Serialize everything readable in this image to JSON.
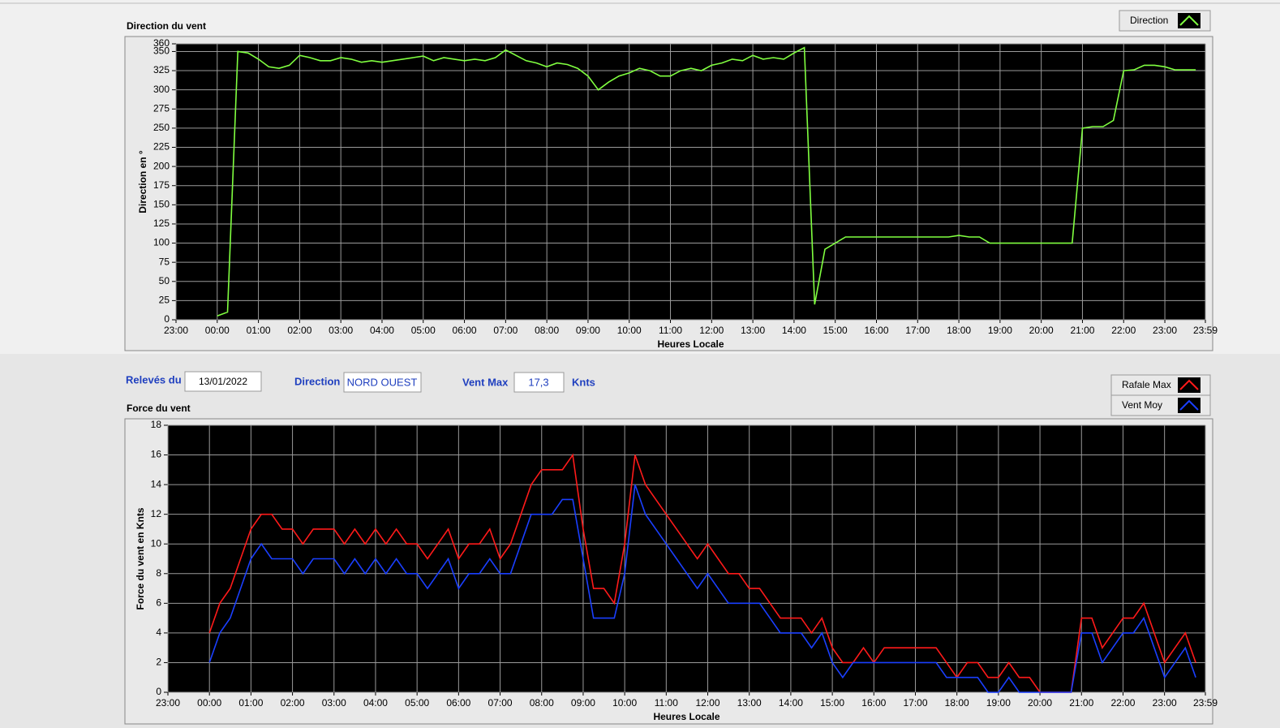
{
  "chart_data": [
    {
      "type": "line",
      "title": "Direction du vent",
      "y_label": "Direction en °",
      "x_label": "Heures Locale",
      "x": [
        "00:00",
        "00:15",
        "00:30",
        "00:45",
        "01:00",
        "01:15",
        "01:30",
        "01:45",
        "02:00",
        "02:15",
        "02:30",
        "02:45",
        "03:00",
        "03:15",
        "03:30",
        "03:45",
        "04:00",
        "04:15",
        "04:30",
        "04:45",
        "05:00",
        "05:15",
        "05:30",
        "05:45",
        "06:00",
        "06:15",
        "06:30",
        "06:45",
        "07:00",
        "07:15",
        "07:30",
        "07:45",
        "08:00",
        "08:15",
        "08:30",
        "08:45",
        "09:00",
        "09:15",
        "09:30",
        "09:45",
        "10:00",
        "10:15",
        "10:30",
        "10:45",
        "11:00",
        "11:15",
        "11:30",
        "11:45",
        "12:00",
        "12:15",
        "12:30",
        "12:45",
        "13:00",
        "13:15",
        "13:30",
        "13:45",
        "14:00",
        "14:15",
        "14:30",
        "14:45",
        "15:00",
        "15:15",
        "15:30",
        "15:45",
        "16:00",
        "16:15",
        "16:30",
        "16:45",
        "17:00",
        "17:15",
        "17:30",
        "17:45",
        "18:00",
        "18:15",
        "18:30",
        "18:45",
        "19:00",
        "19:15",
        "19:30",
        "19:45",
        "20:00",
        "20:15",
        "20:30",
        "20:45",
        "21:00",
        "21:15",
        "21:30",
        "21:45",
        "22:00",
        "22:15",
        "22:30",
        "22:45",
        "23:00",
        "23:15",
        "23:30",
        "23:45"
      ],
      "xticks": [
        "23:00",
        "00:00",
        "01:00",
        "02:00",
        "03:00",
        "04:00",
        "05:00",
        "06:00",
        "07:00",
        "08:00",
        "09:00",
        "10:00",
        "11:00",
        "12:00",
        "13:00",
        "14:00",
        "15:00",
        "16:00",
        "17:00",
        "18:00",
        "19:00",
        "20:00",
        "21:00",
        "22:00",
        "23:00",
        "23:59"
      ],
      "ylim": [
        0,
        360
      ],
      "yticks": [
        0,
        25,
        50,
        75,
        100,
        125,
        150,
        175,
        200,
        225,
        250,
        275,
        300,
        325,
        350,
        360
      ],
      "grid": true,
      "series": [
        {
          "name": "Direction",
          "color": "#80ff40",
          "values": [
            5,
            10,
            350,
            348,
            340,
            330,
            328,
            332,
            345,
            342,
            338,
            338,
            342,
            340,
            336,
            338,
            336,
            338,
            340,
            342,
            344,
            338,
            342,
            340,
            338,
            340,
            338,
            342,
            352,
            345,
            338,
            335,
            330,
            335,
            333,
            328,
            318,
            300,
            310,
            318,
            322,
            328,
            325,
            318,
            318,
            325,
            328,
            325,
            332,
            335,
            340,
            338,
            345,
            340,
            342,
            340,
            348,
            355,
            20,
            92,
            100,
            108,
            108,
            108,
            108,
            108,
            108,
            108,
            108,
            108,
            108,
            108,
            110,
            108,
            108,
            100,
            100,
            100,
            100,
            100,
            100,
            100,
            100,
            100,
            250,
            252,
            252,
            260,
            325,
            326,
            332,
            332,
            330,
            326,
            326,
            326
          ]
        }
      ]
    },
    {
      "type": "line",
      "title": "Force du vent",
      "y_label": "Force du vent en Knts",
      "x_label": "Heures Locale",
      "x": [
        "00:00",
        "00:15",
        "00:30",
        "00:45",
        "01:00",
        "01:15",
        "01:30",
        "01:45",
        "02:00",
        "02:15",
        "02:30",
        "02:45",
        "03:00",
        "03:15",
        "03:30",
        "03:45",
        "04:00",
        "04:15",
        "04:30",
        "04:45",
        "05:00",
        "05:15",
        "05:30",
        "05:45",
        "06:00",
        "06:15",
        "06:30",
        "06:45",
        "07:00",
        "07:15",
        "07:30",
        "07:45",
        "08:00",
        "08:15",
        "08:30",
        "08:45",
        "09:00",
        "09:15",
        "09:30",
        "09:45",
        "10:00",
        "10:15",
        "10:30",
        "10:45",
        "11:00",
        "11:15",
        "11:30",
        "11:45",
        "12:00",
        "12:15",
        "12:30",
        "12:45",
        "13:00",
        "13:15",
        "13:30",
        "13:45",
        "14:00",
        "14:15",
        "14:30",
        "14:45",
        "15:00",
        "15:15",
        "15:30",
        "15:45",
        "16:00",
        "16:15",
        "16:30",
        "16:45",
        "17:00",
        "17:15",
        "17:30",
        "17:45",
        "18:00",
        "18:15",
        "18:30",
        "18:45",
        "19:00",
        "19:15",
        "19:30",
        "19:45",
        "20:00",
        "20:15",
        "20:30",
        "20:45",
        "21:00",
        "21:15",
        "21:30",
        "21:45",
        "22:00",
        "22:15",
        "22:30",
        "22:45",
        "23:00",
        "23:15",
        "23:30",
        "23:45"
      ],
      "xticks": [
        "23:00",
        "00:00",
        "01:00",
        "02:00",
        "03:00",
        "04:00",
        "05:00",
        "06:00",
        "07:00",
        "08:00",
        "09:00",
        "10:00",
        "11:00",
        "12:00",
        "13:00",
        "14:00",
        "15:00",
        "16:00",
        "17:00",
        "18:00",
        "19:00",
        "20:00",
        "21:00",
        "22:00",
        "23:00",
        "23:59"
      ],
      "ylim": [
        0,
        18
      ],
      "yticks": [
        0,
        2,
        4,
        6,
        8,
        10,
        12,
        14,
        16,
        18
      ],
      "grid": true,
      "series": [
        {
          "name": "Rafale Max",
          "color": "#ff1a1a",
          "values": [
            4,
            6,
            7,
            9,
            11,
            12,
            12,
            11,
            11,
            10,
            11,
            11,
            11,
            10,
            11,
            10,
            11,
            10,
            11,
            10,
            10,
            9,
            10,
            11,
            9,
            10,
            10,
            11,
            9,
            10,
            12,
            14,
            15,
            15,
            15,
            16,
            11,
            7,
            7,
            6,
            10,
            16,
            14,
            13,
            12,
            11,
            10,
            9,
            10,
            9,
            8,
            8,
            7,
            7,
            6,
            5,
            5,
            5,
            4,
            5,
            3,
            2,
            2,
            3,
            2,
            3,
            3,
            3,
            3,
            3,
            3,
            2,
            1,
            2,
            2,
            1,
            1,
            2,
            1,
            1,
            0,
            0,
            0,
            0,
            5,
            5,
            3,
            4,
            5,
            5,
            6,
            4,
            2,
            3,
            4,
            2
          ]
        },
        {
          "name": "Vent Moy",
          "color": "#1a3fff",
          "values": [
            2,
            4,
            5,
            7,
            9,
            10,
            9,
            9,
            9,
            8,
            9,
            9,
            9,
            8,
            9,
            8,
            9,
            8,
            9,
            8,
            8,
            7,
            8,
            9,
            7,
            8,
            8,
            9,
            8,
            8,
            10,
            12,
            12,
            12,
            13,
            13,
            9,
            5,
            5,
            5,
            8,
            14,
            12,
            11,
            10,
            9,
            8,
            7,
            8,
            7,
            6,
            6,
            6,
            6,
            5,
            4,
            4,
            4,
            3,
            4,
            2,
            1,
            2,
            2,
            2,
            2,
            2,
            2,
            2,
            2,
            2,
            1,
            1,
            1,
            1,
            0,
            0,
            1,
            0,
            0,
            0,
            0,
            0,
            0,
            4,
            4,
            2,
            3,
            4,
            4,
            5,
            3,
            1,
            2,
            3,
            1
          ]
        }
      ]
    }
  ],
  "readings": {
    "date_label": "Relevés du",
    "date": "13/01/2022",
    "direction_label": "Direction",
    "direction": "NORD OUEST",
    "max_label": "Vent Max",
    "max": "17,3",
    "unit": "Knts"
  }
}
